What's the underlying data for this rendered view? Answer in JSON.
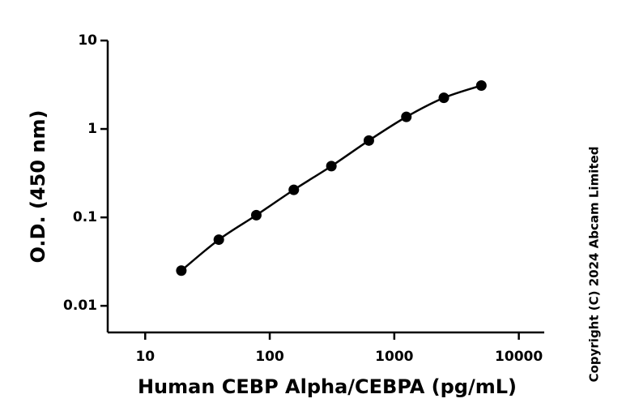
{
  "chart_data": {
    "type": "scatter",
    "x_label": "Human CEBP Alpha/CEBPA (pg/mL)",
    "y_label": "O.D. (450 nm)",
    "annotation": "Copyright (C) 2024 Abcam Limited",
    "x_scale": "log",
    "y_scale": "log",
    "connect": "smooth",
    "xlim": [
      5,
      16000
    ],
    "ylim": [
      0.005,
      10
    ],
    "xticks": [
      10,
      100,
      1000,
      10000
    ],
    "yticks": [
      0.01,
      0.1,
      1,
      10
    ],
    "series": [
      {
        "color": "#000000",
        "x": [
          19.5,
          39,
          78,
          156,
          312.5,
          625,
          1250,
          2500,
          5000
        ],
        "values": [
          0.025,
          0.056,
          0.106,
          0.205,
          0.38,
          0.74,
          1.37,
          2.25,
          3.1
        ]
      }
    ]
  }
}
